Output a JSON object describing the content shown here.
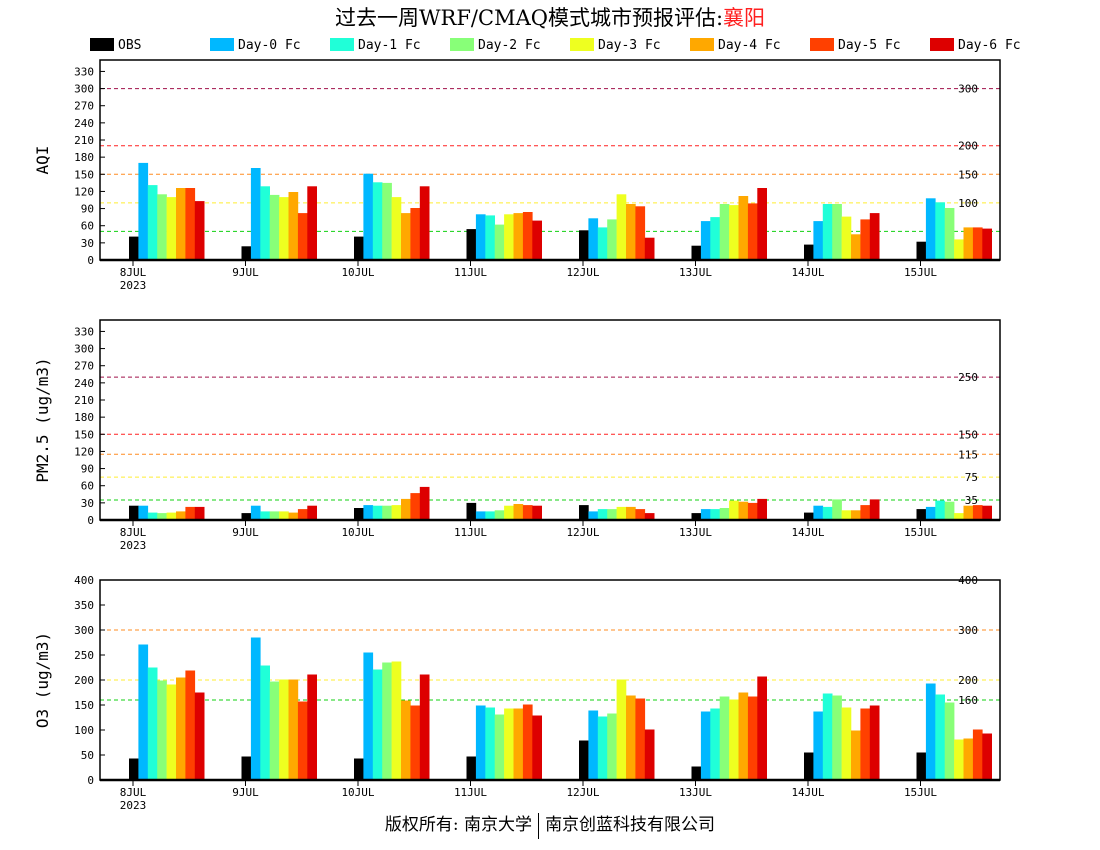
{
  "title": {
    "prefix": "过去一周WRF/CMAQ模式城市预报评估:",
    "city": "襄阳"
  },
  "footer": {
    "left": "版权所有: 南京大学",
    "right": "南京创蓝科技有限公司"
  },
  "colors": {
    "OBS": "#000000",
    "Day-0 Fc": "#00b8ff",
    "Day-1 Fc": "#20ffd8",
    "Day-2 Fc": "#88ff78",
    "Day-3 Fc": "#eeff20",
    "Day-4 Fc": "#ffa800",
    "Day-5 Fc": "#ff4000",
    "Day-6 Fc": "#dd0000"
  },
  "chart_data": [
    {
      "type": "bar",
      "ylabel": "AQI",
      "legend": "top",
      "categories": [
        "8JUL",
        "9JUL",
        "10JUL",
        "11JUL",
        "12JUL",
        "13JUL",
        "14JUL",
        "15JUL"
      ],
      "year_label": "2023",
      "ylim": [
        0,
        350
      ],
      "yticks": [
        0,
        30,
        60,
        90,
        120,
        150,
        180,
        210,
        240,
        270,
        300,
        330
      ],
      "reference_lines": [
        {
          "value": 300,
          "label": "300",
          "color": "#a0104a"
        },
        {
          "value": 200,
          "label": "200",
          "color": "#ff2020"
        },
        {
          "value": 150,
          "label": "150",
          "color": "#ff8c20"
        },
        {
          "value": 100,
          "label": "100",
          "color": "#ffee30"
        },
        {
          "value": 50,
          "label": "50",
          "color": "#10d010"
        }
      ],
      "series": [
        {
          "name": "OBS",
          "values": [
            41,
            24,
            41,
            54,
            52,
            25,
            27,
            32
          ]
        },
        {
          "name": "Day-0 Fc",
          "values": [
            170,
            161,
            151,
            80,
            73,
            68,
            68,
            108
          ]
        },
        {
          "name": "Day-1 Fc",
          "values": [
            131,
            129,
            136,
            78,
            57,
            75,
            98,
            101
          ]
        },
        {
          "name": "Day-2 Fc",
          "values": [
            115,
            114,
            135,
            62,
            71,
            98,
            98,
            91
          ]
        },
        {
          "name": "Day-3 Fc",
          "values": [
            110,
            110,
            110,
            80,
            115,
            96,
            76,
            36
          ]
        },
        {
          "name": "Day-4 Fc",
          "values": [
            126,
            119,
            82,
            82,
            98,
            112,
            45,
            57
          ]
        },
        {
          "name": "Day-5 Fc",
          "values": [
            126,
            82,
            91,
            84,
            94,
            99,
            71,
            57
          ]
        },
        {
          "name": "Day-6 Fc",
          "values": [
            103,
            129,
            129,
            69,
            39,
            126,
            82,
            55
          ]
        }
      ]
    },
    {
      "type": "bar",
      "ylabel": "PM2.5 (ug/m3)",
      "categories": [
        "8JUL",
        "9JUL",
        "10JUL",
        "11JUL",
        "12JUL",
        "13JUL",
        "14JUL",
        "15JUL"
      ],
      "year_label": "2023",
      "ylim": [
        0,
        350
      ],
      "yticks": [
        0,
        30,
        60,
        90,
        120,
        150,
        180,
        210,
        240,
        270,
        300,
        330
      ],
      "reference_lines": [
        {
          "value": 250,
          "label": "250",
          "color": "#a0104a"
        },
        {
          "value": 150,
          "label": "150",
          "color": "#ff2020"
        },
        {
          "value": 115,
          "label": "115",
          "color": "#ff8c20"
        },
        {
          "value": 75,
          "label": "75",
          "color": "#ffee30"
        },
        {
          "value": 35,
          "label": "35",
          "color": "#10d010"
        }
      ],
      "series": [
        {
          "name": "OBS",
          "values": [
            25,
            12,
            21,
            30,
            26,
            12,
            13,
            19
          ]
        },
        {
          "name": "Day-0 Fc",
          "values": [
            25,
            25,
            26,
            15,
            15,
            19,
            25,
            23
          ]
        },
        {
          "name": "Day-1 Fc",
          "values": [
            13,
            15,
            25,
            15,
            19,
            19,
            23,
            34
          ]
        },
        {
          "name": "Day-2 Fc",
          "values": [
            12,
            15,
            25,
            17,
            19,
            21,
            36,
            32
          ]
        },
        {
          "name": "Day-3 Fc",
          "values": [
            13,
            15,
            26,
            25,
            23,
            34,
            17,
            12
          ]
        },
        {
          "name": "Day-4 Fc",
          "values": [
            15,
            13,
            37,
            28,
            23,
            32,
            17,
            25
          ]
        },
        {
          "name": "Day-5 Fc",
          "values": [
            23,
            19,
            47,
            26,
            19,
            30,
            26,
            26
          ]
        },
        {
          "name": "Day-6 Fc",
          "values": [
            23,
            25,
            58,
            25,
            12,
            37,
            36,
            25
          ]
        }
      ]
    },
    {
      "type": "bar",
      "ylabel": "O3 (ug/m3)",
      "categories": [
        "8JUL",
        "9JUL",
        "10JUL",
        "11JUL",
        "12JUL",
        "13JUL",
        "14JUL",
        "15JUL"
      ],
      "year_label": "2023",
      "ylim": [
        0,
        400
      ],
      "yticks": [
        0,
        50,
        100,
        150,
        200,
        250,
        300,
        350,
        400
      ],
      "reference_lines": [
        {
          "value": 400,
          "label": "400",
          "color": "#ff2020"
        },
        {
          "value": 300,
          "label": "300",
          "color": "#ff8c20"
        },
        {
          "value": 200,
          "label": "200",
          "color": "#ffee30"
        },
        {
          "value": 160,
          "label": "160",
          "color": "#10d010"
        }
      ],
      "series": [
        {
          "name": "OBS",
          "values": [
            43,
            47,
            43,
            47,
            79,
            27,
            55,
            55
          ]
        },
        {
          "name": "Day-0 Fc",
          "values": [
            271,
            285,
            255,
            149,
            139,
            137,
            137,
            193
          ]
        },
        {
          "name": "Day-1 Fc",
          "values": [
            225,
            229,
            221,
            145,
            127,
            143,
            173,
            171
          ]
        },
        {
          "name": "Day-2 Fc",
          "values": [
            199,
            197,
            235,
            131,
            133,
            167,
            169,
            155
          ]
        },
        {
          "name": "Day-3 Fc",
          "values": [
            191,
            201,
            237,
            143,
            201,
            161,
            145,
            81
          ]
        },
        {
          "name": "Day-4 Fc",
          "values": [
            205,
            201,
            159,
            143,
            169,
            175,
            99,
            83
          ]
        },
        {
          "name": "Day-5 Fc",
          "values": [
            219,
            157,
            149,
            151,
            163,
            167,
            143,
            101
          ]
        },
        {
          "name": "Day-6 Fc",
          "values": [
            175,
            211,
            211,
            129,
            101,
            207,
            149,
            93
          ]
        }
      ]
    }
  ]
}
